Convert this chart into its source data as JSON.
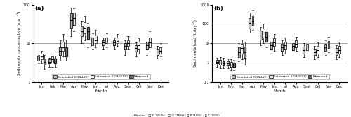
{
  "months": [
    "Jan",
    "Feb",
    "Mar",
    "Apr",
    "May",
    "Jun",
    "Jul",
    "Aug",
    "Sept",
    "Oct",
    "Nov",
    "Dec"
  ],
  "panel_a_label": "(a)",
  "panel_b_label": "(b)",
  "ylabel_a": "Sediments concentration (mg l⁻¹)",
  "ylabel_b": "Sediments load (t day⁻¹)",
  "xlabel": "Month",
  "colors": {
    "simulated": "#c0c0c0",
    "estimated": "#f0f0f0",
    "measured": "#707070"
  },
  "legend_labels": [
    "Simulated (QUAL2E)",
    "Estimated (LOADEST)",
    "Measured"
  ],
  "footer_legend": "- Median : □ Q (25%) : □ Q (75%) : ⎯ P (10%) : ⎯ P (90%)",
  "conc": {
    "sim_p10": [
      3.0,
      2.5,
      3.5,
      15.0,
      10.0,
      7.0,
      7.0,
      7.0,
      5.0,
      4.5,
      5.0,
      4.0
    ],
    "sim_q25": [
      3.5,
      3.0,
      5.0,
      25.0,
      15.0,
      9.0,
      9.0,
      9.0,
      7.0,
      6.0,
      7.0,
      5.0
    ],
    "sim_med": [
      4.0,
      3.3,
      6.5,
      40.0,
      20.0,
      11.0,
      10.5,
      10.5,
      8.5,
      7.5,
      9.0,
      6.0
    ],
    "sim_q75": [
      4.5,
      3.8,
      8.0,
      60.0,
      27.0,
      14.0,
      12.0,
      12.0,
      10.0,
      9.0,
      11.0,
      7.0
    ],
    "sim_p90": [
      5.0,
      4.2,
      12.0,
      85.0,
      38.0,
      18.0,
      14.0,
      14.0,
      12.0,
      10.5,
      14.0,
      8.5
    ],
    "est_p10": [
      3.0,
      2.5,
      4.5,
      20.0,
      12.0,
      8.0,
      8.0,
      8.5,
      7.0,
      5.5,
      6.0,
      4.5
    ],
    "est_q25": [
      3.8,
      3.2,
      6.5,
      30.0,
      18.0,
      10.0,
      10.0,
      10.0,
      8.5,
      7.0,
      8.0,
      5.5
    ],
    "est_med": [
      4.5,
      3.8,
      8.0,
      45.0,
      25.0,
      12.0,
      11.0,
      11.5,
      10.0,
      9.0,
      10.5,
      6.5
    ],
    "est_q75": [
      5.5,
      4.5,
      11.0,
      62.0,
      35.0,
      16.0,
      14.0,
      14.0,
      12.0,
      11.0,
      14.0,
      8.0
    ],
    "est_p90": [
      6.5,
      5.5,
      17.0,
      80.0,
      50.0,
      22.0,
      18.0,
      17.0,
      15.0,
      13.5,
      20.0,
      10.0
    ],
    "meas_p10": [
      2.2,
      2.5,
      3.5,
      null,
      8.0,
      null,
      null,
      null,
      null,
      null,
      null,
      null
    ],
    "meas_q25": [
      2.8,
      3.0,
      4.5,
      null,
      13.0,
      null,
      null,
      null,
      null,
      null,
      null,
      null
    ],
    "meas_med": [
      3.3,
      3.5,
      6.0,
      null,
      20.0,
      null,
      null,
      null,
      null,
      null,
      null,
      null
    ],
    "meas_q75": [
      4.0,
      4.0,
      8.0,
      null,
      26.0,
      null,
      null,
      null,
      null,
      null,
      null,
      null
    ],
    "meas_p90": [
      5.0,
      4.8,
      12.5,
      null,
      33.0,
      null,
      null,
      null,
      null,
      null,
      null,
      null
    ]
  },
  "load": {
    "sim_p10": [
      0.6,
      0.5,
      1.2,
      35.0,
      8.0,
      3.0,
      2.5,
      3.0,
      2.0,
      1.5,
      2.5,
      1.5
    ],
    "sim_q25": [
      0.9,
      0.7,
      2.0,
      60.0,
      15.0,
      5.0,
      4.0,
      4.5,
      3.0,
      2.5,
      4.0,
      2.5
    ],
    "sim_med": [
      1.1,
      0.9,
      3.5,
      110.0,
      25.0,
      8.0,
      6.0,
      7.0,
      4.5,
      3.5,
      6.0,
      3.5
    ],
    "sim_q75": [
      1.4,
      1.2,
      6.0,
      200.0,
      45.0,
      12.0,
      9.0,
      10.0,
      6.5,
      5.0,
      9.0,
      5.5
    ],
    "sim_p90": [
      1.8,
      1.6,
      10.0,
      380.0,
      70.0,
      20.0,
      14.0,
      15.0,
      10.0,
      7.5,
      14.0,
      8.0
    ],
    "est_p10": [
      0.5,
      0.4,
      1.5,
      50.0,
      10.0,
      4.0,
      3.0,
      4.0,
      3.0,
      2.0,
      3.5,
      2.0
    ],
    "est_q25": [
      0.8,
      0.6,
      3.0,
      90.0,
      20.0,
      7.0,
      5.0,
      6.0,
      4.5,
      3.0,
      5.5,
      3.0
    ],
    "est_med": [
      1.0,
      0.8,
      5.5,
      150.0,
      35.0,
      11.0,
      8.0,
      9.0,
      6.5,
      4.5,
      8.5,
      4.5
    ],
    "est_q75": [
      1.4,
      1.1,
      9.0,
      250.0,
      60.0,
      18.0,
      12.0,
      14.0,
      9.5,
      7.0,
      13.0,
      7.0
    ],
    "est_p90": [
      2.0,
      1.5,
      16.0,
      500.0,
      100.0,
      30.0,
      20.0,
      22.0,
      15.0,
      11.0,
      22.0,
      12.0
    ],
    "meas_p10": [
      0.5,
      0.4,
      0.8,
      null,
      6.0,
      null,
      null,
      null,
      null,
      null,
      null,
      null
    ],
    "meas_q25": [
      0.7,
      0.6,
      1.8,
      null,
      12.0,
      null,
      null,
      null,
      null,
      null,
      null,
      null
    ],
    "meas_med": [
      0.9,
      0.75,
      3.5,
      null,
      22.0,
      null,
      null,
      null,
      null,
      null,
      null,
      null
    ],
    "meas_q75": [
      1.2,
      1.0,
      6.5,
      null,
      38.0,
      null,
      null,
      null,
      null,
      null,
      null,
      null
    ],
    "meas_p90": [
      1.7,
      1.4,
      12.0,
      null,
      58.0,
      null,
      null,
      null,
      null,
      null,
      null,
      null
    ]
  }
}
